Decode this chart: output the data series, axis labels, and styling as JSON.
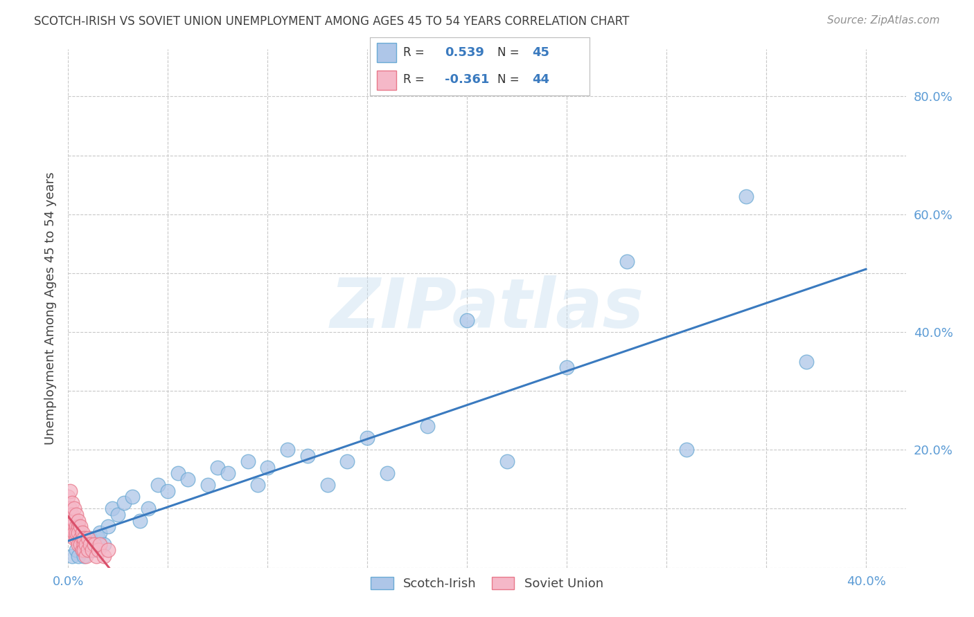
{
  "title": "SCOTCH-IRISH VS SOVIET UNION UNEMPLOYMENT AMONG AGES 45 TO 54 YEARS CORRELATION CHART",
  "source": "Source: ZipAtlas.com",
  "ylabel_label": "Unemployment Among Ages 45 to 54 years",
  "xlim": [
    0.0,
    0.42
  ],
  "ylim": [
    0.0,
    0.88
  ],
  "xticks": [
    0.0,
    0.05,
    0.1,
    0.15,
    0.2,
    0.25,
    0.3,
    0.35,
    0.4
  ],
  "yticks": [
    0.0,
    0.1,
    0.2,
    0.3,
    0.4,
    0.5,
    0.6,
    0.7,
    0.8
  ],
  "scotch_irish_color": "#aec6e8",
  "scotch_irish_edge_color": "#6aaad4",
  "soviet_union_color": "#f5b8c8",
  "soviet_union_edge_color": "#e8788a",
  "scotch_irish_line_color": "#3a7abf",
  "soviet_union_line_color": "#d94f6a",
  "scotch_irish_R": 0.539,
  "scotch_irish_N": 45,
  "soviet_union_R": -0.361,
  "soviet_union_N": 44,
  "watermark": "ZIPatlas",
  "background_color": "#ffffff",
  "grid_color": "#c8c8c8",
  "tick_color": "#5b9bd5",
  "title_color": "#404040",
  "label_color": "#404040",
  "source_color": "#909090"
}
